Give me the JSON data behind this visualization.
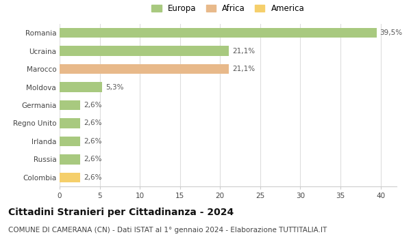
{
  "categories": [
    "Colombia",
    "Russia",
    "Irlanda",
    "Regno Unito",
    "Germania",
    "Moldova",
    "Marocco",
    "Ucraina",
    "Romania"
  ],
  "values": [
    2.6,
    2.6,
    2.6,
    2.6,
    2.6,
    5.3,
    21.1,
    21.1,
    39.5
  ],
  "labels": [
    "2,6%",
    "2,6%",
    "2,6%",
    "2,6%",
    "2,6%",
    "5,3%",
    "21,1%",
    "21,1%",
    "39,5%"
  ],
  "colors": [
    "#f5cf6b",
    "#a8c97f",
    "#a8c97f",
    "#a8c97f",
    "#a8c97f",
    "#a8c97f",
    "#e8b98a",
    "#a8c97f",
    "#a8c97f"
  ],
  "legend": [
    {
      "label": "Europa",
      "color": "#a8c97f"
    },
    {
      "label": "Africa",
      "color": "#e8b98a"
    },
    {
      "label": "America",
      "color": "#f5cf6b"
    }
  ],
  "xlim": [
    0,
    42
  ],
  "xticks": [
    0,
    5,
    10,
    15,
    20,
    25,
    30,
    35,
    40
  ],
  "title": "Cittadini Stranieri per Cittadinanza - 2024",
  "subtitle": "COMUNE DI CAMERANA (CN) - Dati ISTAT al 1° gennaio 2024 - Elaborazione TUTTITALIA.IT",
  "title_fontsize": 10,
  "subtitle_fontsize": 7.5,
  "label_fontsize": 7.5,
  "tick_fontsize": 7.5,
  "legend_fontsize": 8.5,
  "bar_height": 0.55,
  "background_color": "#ffffff",
  "grid_color": "#dddddd"
}
